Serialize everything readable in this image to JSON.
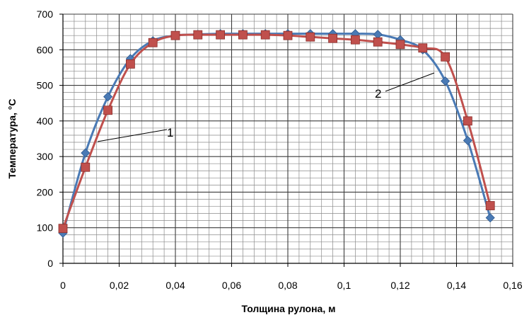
{
  "chart_data": {
    "type": "line",
    "xlabel": "Толщина  рулона, м",
    "ylabel": "Температура, °С",
    "xlim": [
      0,
      0.16
    ],
    "ylim": [
      0,
      700
    ],
    "x_ticks": [
      "0",
      "0,02",
      "0,04",
      "0,06",
      "0,08",
      "0,1",
      "0,12",
      "0,14",
      "0,16"
    ],
    "y_ticks": [
      "0",
      "100",
      "200",
      "300",
      "400",
      "500",
      "600",
      "700"
    ],
    "grid": true,
    "series": [
      {
        "name": "1",
        "color": "#4a7ab5",
        "marker": "diamond",
        "x": [
          0,
          0.008,
          0.016,
          0.024,
          0.032,
          0.04,
          0.048,
          0.056,
          0.064,
          0.072,
          0.08,
          0.088,
          0.096,
          0.104,
          0.112,
          0.12,
          0.128,
          0.136,
          0.144,
          0.152
        ],
        "y": [
          85,
          310,
          468,
          575,
          625,
          640,
          643,
          645,
          645,
          645,
          645,
          645,
          645,
          645,
          643,
          628,
          600,
          512,
          345,
          128
        ]
      },
      {
        "name": "2",
        "color": "#c0504d",
        "marker": "square",
        "x": [
          0,
          0.008,
          0.016,
          0.024,
          0.032,
          0.04,
          0.048,
          0.056,
          0.064,
          0.072,
          0.08,
          0.088,
          0.096,
          0.104,
          0.112,
          0.12,
          0.128,
          0.136,
          0.144,
          0.152
        ],
        "y": [
          98,
          270,
          430,
          560,
          620,
          640,
          642,
          642,
          642,
          642,
          640,
          636,
          632,
          628,
          622,
          615,
          605,
          580,
          400,
          162
        ]
      }
    ],
    "annotations": [
      "1",
      "2"
    ]
  }
}
